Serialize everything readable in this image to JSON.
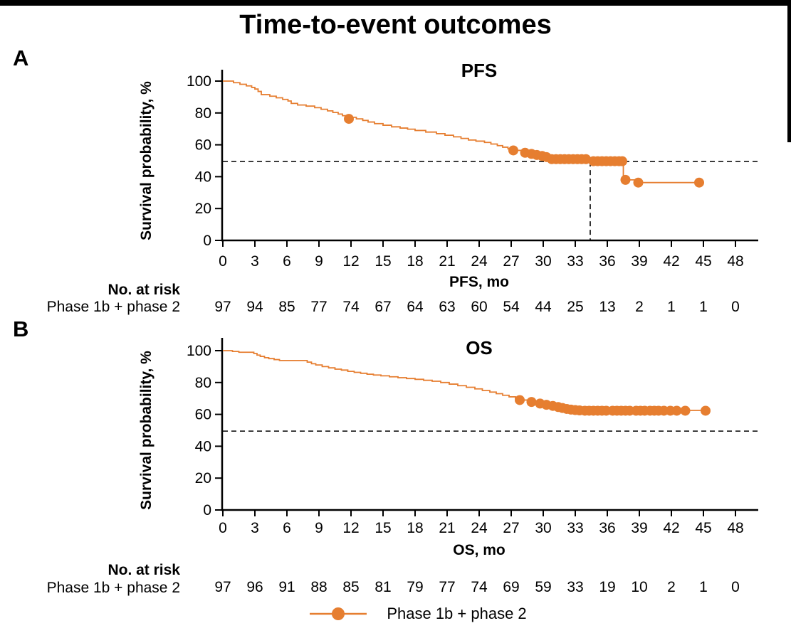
{
  "figure": {
    "title": "Time-to-event outcomes"
  },
  "legend": {
    "label": "Phase 1b + phase 2"
  },
  "colors": {
    "series": "#E67E30",
    "axis": "#000000",
    "reference": "#000000",
    "background": "#FFFFFF"
  },
  "chart_data": [
    {
      "type": "line",
      "subtype": "kaplan-meier-step-curve",
      "panel": "A",
      "title": "PFS",
      "xlabel": "PFS, mo",
      "ylabel": "Survival probability, %",
      "xlim": [
        0,
        48
      ],
      "ylim": [
        0,
        100
      ],
      "xticks": [
        0,
        3,
        6,
        9,
        12,
        15,
        18,
        21,
        24,
        27,
        30,
        33,
        36,
        39,
        42,
        45,
        48
      ],
      "yticks": [
        0,
        20,
        40,
        60,
        80,
        100
      ],
      "grid": false,
      "reference_lines": {
        "horizontal_survival_pct": 49.5,
        "vertical_month": 34.4
      },
      "series": [
        {
          "name": "Phase 1b + phase 2",
          "color": "#E67E30",
          "step_points": [
            [
              1.0,
              99
            ],
            [
              1.6,
              98
            ],
            [
              2.2,
              97
            ],
            [
              2.7,
              96
            ],
            [
              3.0,
              95
            ],
            [
              3.3,
              93.5
            ],
            [
              3.6,
              91.5
            ],
            [
              4.4,
              90.5
            ],
            [
              5.0,
              89.5
            ],
            [
              5.6,
              88.5
            ],
            [
              6.1,
              87.5
            ],
            [
              6.4,
              86
            ],
            [
              7.0,
              85
            ],
            [
              7.8,
              84.3
            ],
            [
              8.6,
              83.3
            ],
            [
              9.2,
              82.3
            ],
            [
              9.8,
              81.3
            ],
            [
              10.3,
              80.3
            ],
            [
              10.8,
              79.3
            ],
            [
              11.2,
              78.3
            ],
            [
              11.5,
              77.3
            ],
            [
              12.5,
              76.3
            ],
            [
              13.1,
              75.3
            ],
            [
              13.6,
              74.3
            ],
            [
              14.2,
              73.3
            ],
            [
              15.0,
              72.3
            ],
            [
              15.8,
              71.3
            ],
            [
              16.6,
              70.5
            ],
            [
              17.3,
              69.8
            ],
            [
              18.0,
              69
            ],
            [
              19.0,
              68
            ],
            [
              20.0,
              67
            ],
            [
              20.8,
              66
            ],
            [
              21.6,
              65
            ],
            [
              22.3,
              64
            ],
            [
              23.0,
              63
            ],
            [
              23.7,
              62.3
            ],
            [
              24.5,
              61.5
            ],
            [
              25.1,
              60.5
            ],
            [
              25.7,
              59.5
            ],
            [
              26.2,
              58.5
            ],
            [
              26.7,
              57.5
            ],
            [
              27.1,
              56.5
            ],
            [
              28.0,
              55
            ],
            [
              28.8,
              54
            ],
            [
              29.5,
              53
            ],
            [
              30.2,
              52
            ],
            [
              30.8,
              51
            ],
            [
              34.4,
              49.7
            ],
            [
              37.5,
              38
            ],
            [
              38.6,
              36.3
            ]
          ],
          "end_of_follow_up_month": 44.6,
          "censor_marks": [
            [
              11.8,
              76.3
            ],
            [
              27.2,
              56.5
            ],
            [
              28.3,
              55
            ],
            [
              28.9,
              54.3
            ],
            [
              29.4,
              53.6
            ],
            [
              29.9,
              53
            ],
            [
              30.3,
              52.3
            ],
            [
              30.8,
              51
            ],
            [
              31.2,
              51
            ],
            [
              31.6,
              51
            ],
            [
              32.0,
              51
            ],
            [
              32.4,
              51
            ],
            [
              32.8,
              51
            ],
            [
              33.2,
              51
            ],
            [
              33.6,
              51
            ],
            [
              34.0,
              51
            ],
            [
              34.7,
              49.7
            ],
            [
              35.1,
              49.7
            ],
            [
              35.5,
              49.7
            ],
            [
              35.9,
              49.7
            ],
            [
              36.3,
              49.7
            ],
            [
              36.7,
              49.7
            ],
            [
              37.1,
              49.7
            ],
            [
              37.4,
              49.7
            ],
            [
              37.7,
              38
            ],
            [
              38.9,
              36.3
            ],
            [
              44.6,
              36.3
            ]
          ]
        }
      ],
      "risk_table": {
        "header": "No. at risk",
        "rows": [
          {
            "label": "Phase 1b + phase 2",
            "values": [
              97,
              94,
              85,
              77,
              74,
              67,
              64,
              63,
              60,
              54,
              44,
              25,
              13,
              2,
              1,
              1,
              0
            ]
          }
        ]
      }
    },
    {
      "type": "line",
      "subtype": "kaplan-meier-step-curve",
      "panel": "B",
      "title": "OS",
      "xlabel": "OS, mo",
      "ylabel": "Survival probability, %",
      "xlim": [
        0,
        48
      ],
      "ylim": [
        0,
        100
      ],
      "xticks": [
        0,
        3,
        6,
        9,
        12,
        15,
        18,
        21,
        24,
        27,
        30,
        33,
        36,
        39,
        42,
        45,
        48
      ],
      "yticks": [
        0,
        20,
        40,
        60,
        80,
        100
      ],
      "grid": false,
      "reference_lines": {
        "horizontal_survival_pct": 49.5,
        "vertical_month": null
      },
      "series": [
        {
          "name": "Phase 1b + phase 2",
          "color": "#E67E30",
          "step_points": [
            [
              0.9,
              99.5
            ],
            [
              1.5,
              99
            ],
            [
              2.9,
              98.2
            ],
            [
              3.2,
              97.2
            ],
            [
              3.5,
              96.4
            ],
            [
              3.9,
              95.6
            ],
            [
              4.3,
              95
            ],
            [
              4.8,
              94.4
            ],
            [
              5.3,
              93.8
            ],
            [
              7.9,
              92.8
            ],
            [
              8.3,
              91.8
            ],
            [
              8.7,
              91
            ],
            [
              9.3,
              90
            ],
            [
              9.9,
              89.2
            ],
            [
              10.5,
              88.4
            ],
            [
              11.1,
              87.8
            ],
            [
              11.7,
              87
            ],
            [
              12.3,
              86.4
            ],
            [
              12.9,
              85.8
            ],
            [
              13.5,
              85.2
            ],
            [
              14.1,
              84.7
            ],
            [
              14.8,
              84.2
            ],
            [
              15.6,
              83.6
            ],
            [
              16.4,
              83
            ],
            [
              17.2,
              82.5
            ],
            [
              18.0,
              82
            ],
            [
              18.8,
              81.4
            ],
            [
              19.6,
              80.8
            ],
            [
              20.4,
              80
            ],
            [
              21.2,
              79
            ],
            [
              22.0,
              78
            ],
            [
              22.8,
              77
            ],
            [
              23.6,
              76
            ],
            [
              24.3,
              75
            ],
            [
              25.0,
              74
            ],
            [
              25.6,
              73
            ],
            [
              26.2,
              72
            ],
            [
              26.8,
              71
            ],
            [
              27.4,
              70
            ],
            [
              28.1,
              69
            ],
            [
              28.9,
              67.8
            ],
            [
              29.7,
              66.8
            ],
            [
              30.5,
              65.8
            ],
            [
              31.1,
              65
            ],
            [
              31.5,
              64.4
            ],
            [
              31.9,
              63.8
            ],
            [
              32.3,
              63.3
            ],
            [
              32.8,
              62.9
            ],
            [
              33.3,
              62.5
            ]
          ],
          "end_of_follow_up_month": 45.2,
          "censor_marks": [
            [
              27.8,
              69
            ],
            [
              28.9,
              67.8
            ],
            [
              29.7,
              66.8
            ],
            [
              30.3,
              66
            ],
            [
              30.9,
              65.3
            ],
            [
              31.4,
              64.6
            ],
            [
              31.8,
              64
            ],
            [
              32.2,
              63.4
            ],
            [
              32.6,
              63
            ],
            [
              33.0,
              62.7
            ],
            [
              33.4,
              62.5
            ],
            [
              33.9,
              62.3
            ],
            [
              34.3,
              62.3
            ],
            [
              34.7,
              62.3
            ],
            [
              35.1,
              62.3
            ],
            [
              35.5,
              62.3
            ],
            [
              35.9,
              62.3
            ],
            [
              36.5,
              62.3
            ],
            [
              36.9,
              62.3
            ],
            [
              37.3,
              62.3
            ],
            [
              37.7,
              62.3
            ],
            [
              38.1,
              62.3
            ],
            [
              38.7,
              62.3
            ],
            [
              39.1,
              62.3
            ],
            [
              39.5,
              62.3
            ],
            [
              40.0,
              62.3
            ],
            [
              40.4,
              62.3
            ],
            [
              40.8,
              62.3
            ],
            [
              41.3,
              62.3
            ],
            [
              41.9,
              62.3
            ],
            [
              42.5,
              62.3
            ],
            [
              43.3,
              62.3
            ],
            [
              45.2,
              62.3
            ]
          ]
        }
      ],
      "risk_table": {
        "header": "No. at risk",
        "rows": [
          {
            "label": "Phase 1b + phase 2",
            "values": [
              97,
              96,
              91,
              88,
              85,
              81,
              79,
              77,
              74,
              69,
              59,
              33,
              19,
              10,
              2,
              1,
              0
            ]
          }
        ]
      }
    }
  ]
}
